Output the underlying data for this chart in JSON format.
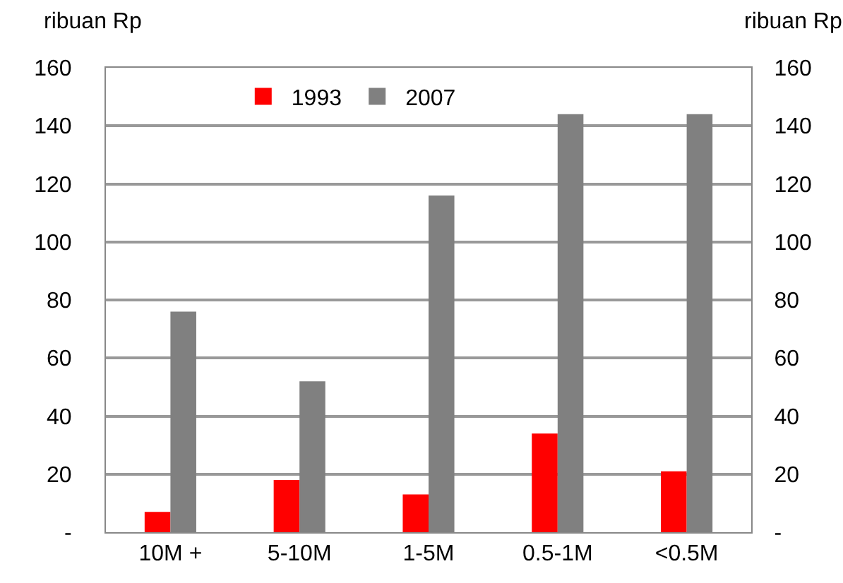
{
  "chart_data": {
    "type": "bar",
    "ylabel": "ribuan Rp",
    "y2label": "ribuan Rp",
    "categories": [
      "10M +",
      "5-10M",
      "1-5M",
      "0.5-1M",
      "<0.5M"
    ],
    "series": [
      {
        "name": "1993",
        "color": "#ff0000",
        "values": [
          7,
          18,
          13,
          34,
          21
        ]
      },
      {
        "name": "2007",
        "color": "#808080",
        "values": [
          76,
          52,
          116,
          144,
          144
        ]
      }
    ],
    "ylim": [
      0,
      160
    ],
    "yticks": [
      {
        "value": 0,
        "label": "-"
      },
      20,
      40,
      60,
      80,
      100,
      120,
      140,
      160
    ],
    "y2lim": [
      0,
      160
    ],
    "y2ticks": [
      {
        "value": 0,
        "label": "-"
      },
      20,
      40,
      60,
      80,
      100,
      120,
      140,
      160
    ],
    "grid": "y",
    "legend": "top left"
  }
}
